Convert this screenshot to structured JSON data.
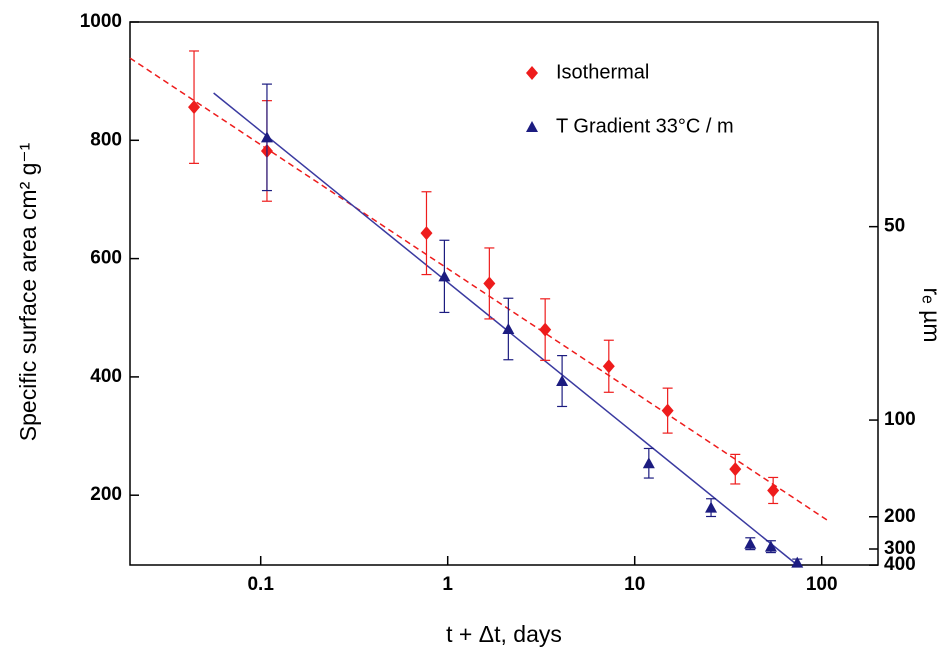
{
  "chart_data": {
    "type": "scatter",
    "xlabel": "t + Δt, days",
    "ylabel": "Specific surface area  cm² g⁻¹",
    "y2label": "rₑ µm",
    "xscale": "log",
    "xlim": [
      0.02,
      200
    ],
    "xticks": [
      0.1,
      1,
      10,
      100
    ],
    "ylim": [
      82,
      1000
    ],
    "yticks": [
      200,
      400,
      600,
      800,
      1000
    ],
    "y2scale": "reciprocal",
    "y2lim": [
      399,
      32.7
    ],
    "y2ticks": [
      50,
      100,
      200,
      300,
      400
    ],
    "legend": "top-right",
    "series": [
      {
        "name": "Isothermal",
        "color": "#ee1c1c",
        "marker": "diamond",
        "x": [
          0.044,
          0.108,
          0.77,
          1.67,
          3.32,
          7.27,
          15,
          34.5,
          55
        ],
        "values": [
          856,
          782,
          643,
          558,
          480,
          418,
          343,
          244,
          208
        ],
        "errors": [
          95,
          85,
          70,
          60,
          52,
          44,
          38,
          25,
          22
        ]
      },
      {
        "name": "T Gradient 33°C / m",
        "color": "#1c1c80",
        "marker": "triangle",
        "x": [
          0.108,
          0.96,
          2.11,
          4.09,
          11.9,
          25.6,
          41.5,
          53.5,
          74
        ],
        "values": [
          805,
          570,
          481,
          393,
          254,
          179,
          118,
          113,
          86
        ],
        "errors": [
          90,
          61,
          52,
          43,
          25,
          15,
          10,
          10,
          6
        ]
      }
    ],
    "fits": [
      {
        "color": "#ee1c1c",
        "dashed": true,
        "x": [
          0.02,
          108
        ],
        "values": [
          939,
          157
        ]
      },
      {
        "color": "#3a3aa0",
        "dashed": false,
        "x": [
          0.056,
          74
        ],
        "values": [
          880,
          82
        ]
      }
    ]
  }
}
